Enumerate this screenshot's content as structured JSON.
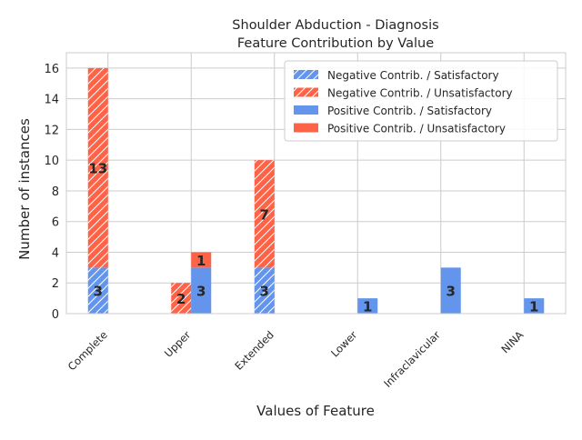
{
  "chart_data": {
    "type": "bar",
    "title": [
      "Shoulder Abduction - Diagnosis",
      "Feature Contribution by Value"
    ],
    "xlabel": "Values of Feature",
    "ylabel": "Number of instances",
    "categories": [
      "Complete",
      "Upper",
      "Extended",
      "Lower",
      "Infraclavicular",
      "NINA"
    ],
    "ylim": [
      0,
      17
    ],
    "yticks": [
      0,
      2,
      4,
      6,
      8,
      10,
      12,
      14,
      16
    ],
    "grid": true,
    "legend_position": "top-right",
    "colors": {
      "satisfactory": "#6495ed",
      "unsatisfactory": "#ff6347"
    },
    "series": [
      {
        "name": "Negative Contrib. / Satisfactory",
        "group": "negative",
        "hatch": true,
        "color": "#6495ed",
        "values": [
          3,
          0,
          3,
          0,
          0,
          0
        ]
      },
      {
        "name": "Negative Contrib. / Unsatisfactory",
        "group": "negative",
        "hatch": true,
        "color": "#ff6347",
        "values": [
          13,
          2,
          7,
          0,
          0,
          0
        ]
      },
      {
        "name": "Positive Contrib. / Satisfactory",
        "group": "positive",
        "hatch": false,
        "color": "#6495ed",
        "values": [
          0,
          3,
          0,
          1,
          3,
          1
        ]
      },
      {
        "name": "Positive Contrib. / Unsatisfactory",
        "group": "positive",
        "hatch": false,
        "color": "#ff6347",
        "values": [
          0,
          1,
          0,
          0,
          0,
          0
        ]
      }
    ]
  }
}
